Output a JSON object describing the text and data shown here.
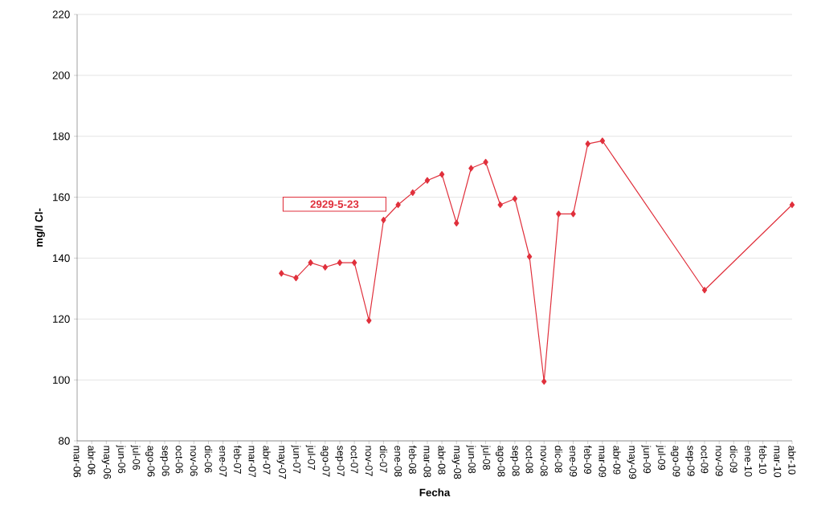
{
  "chart_data": {
    "type": "line",
    "xlabel": "Fecha",
    "ylabel": "mg/l Cl-",
    "categories": [
      "mar-06",
      "abr-06",
      "may-06",
      "jun-06",
      "jul-06",
      "ago-06",
      "sep-06",
      "oct-06",
      "nov-06",
      "dic-06",
      "ene-07",
      "feb-07",
      "mar-07",
      "abr-07",
      "may-07",
      "jun-07",
      "jul-07",
      "ago-07",
      "sep-07",
      "oct-07",
      "nov-07",
      "dic-07",
      "ene-08",
      "feb-08",
      "mar-08",
      "abr-08",
      "may-08",
      "jun-08",
      "jul-08",
      "ago-08",
      "sep-08",
      "oct-08",
      "nov-08",
      "dic-08",
      "ene-09",
      "feb-09",
      "mar-09",
      "abr-09",
      "may-09",
      "jun-09",
      "jul-09",
      "ago-09",
      "sep-09",
      "oct-09",
      "nov-09",
      "dic-09",
      "ene-10",
      "feb-10",
      "mar-10",
      "abr-10"
    ],
    "series": [
      {
        "color": "#e0303c",
        "values": [
          null,
          null,
          null,
          null,
          null,
          null,
          null,
          null,
          null,
          null,
          null,
          null,
          null,
          null,
          135,
          133.5,
          138.5,
          137,
          138.5,
          138.5,
          119.5,
          152.5,
          157.5,
          161.5,
          165.5,
          167.5,
          151.5,
          169.5,
          171.5,
          157.5,
          159.5,
          140.5,
          99.5,
          154.5,
          154.5,
          177.5,
          178.5,
          null,
          null,
          null,
          null,
          null,
          null,
          129.5,
          null,
          null,
          null,
          null,
          null,
          157.5
        ]
      }
    ],
    "ylim": [
      80,
      220
    ],
    "yticks": [
      80,
      100,
      120,
      140,
      160,
      180,
      200,
      220
    ],
    "grid": "y",
    "marker": "diamond",
    "line_style": "solid",
    "annotations": [
      "2929-5-23"
    ]
  }
}
